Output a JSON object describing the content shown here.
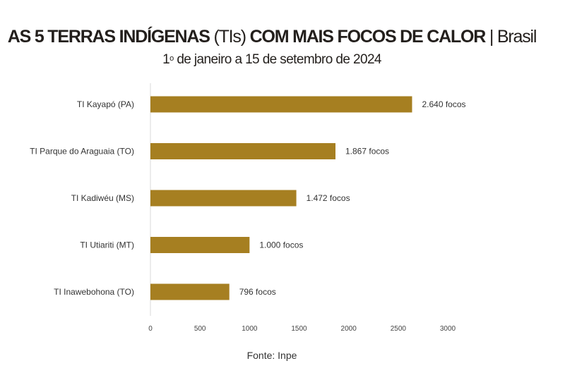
{
  "title": {
    "bold1": "AS 5 TERRAS INDÍGENAS",
    "light1": "(TIs)",
    "bold2": "COM MAIS FOCOS DE CALOR",
    "light2": "| Brasil"
  },
  "subtitle": {
    "pre": "1",
    "sup": "o",
    "post": "de janeiro a 15 de setembro de 2024"
  },
  "source": "Fonte: Inpe",
  "colors": {
    "bar": "#a67f21",
    "axis": "#d9d9d9",
    "text": "#231f1c"
  },
  "chart_data": {
    "type": "bar",
    "orientation": "horizontal",
    "categories": [
      "TI Kayapó (PA)",
      "TI Parque do Araguaia (TO)",
      "TI Kadiwéu (MS)",
      "TI Utiariti (MT)",
      "TI Inawebohona (TO)"
    ],
    "values": [
      2640,
      1867,
      1472,
      1000,
      796
    ],
    "data_labels": [
      "2.640 focos",
      "1.867 focos",
      "1.472 focos",
      "1.000 focos",
      "796  focos"
    ],
    "xlim": [
      0,
      3000
    ],
    "xticks": [
      "0",
      "500",
      "1000",
      "1500",
      "2000",
      "2500",
      "3000"
    ],
    "grid": false
  }
}
